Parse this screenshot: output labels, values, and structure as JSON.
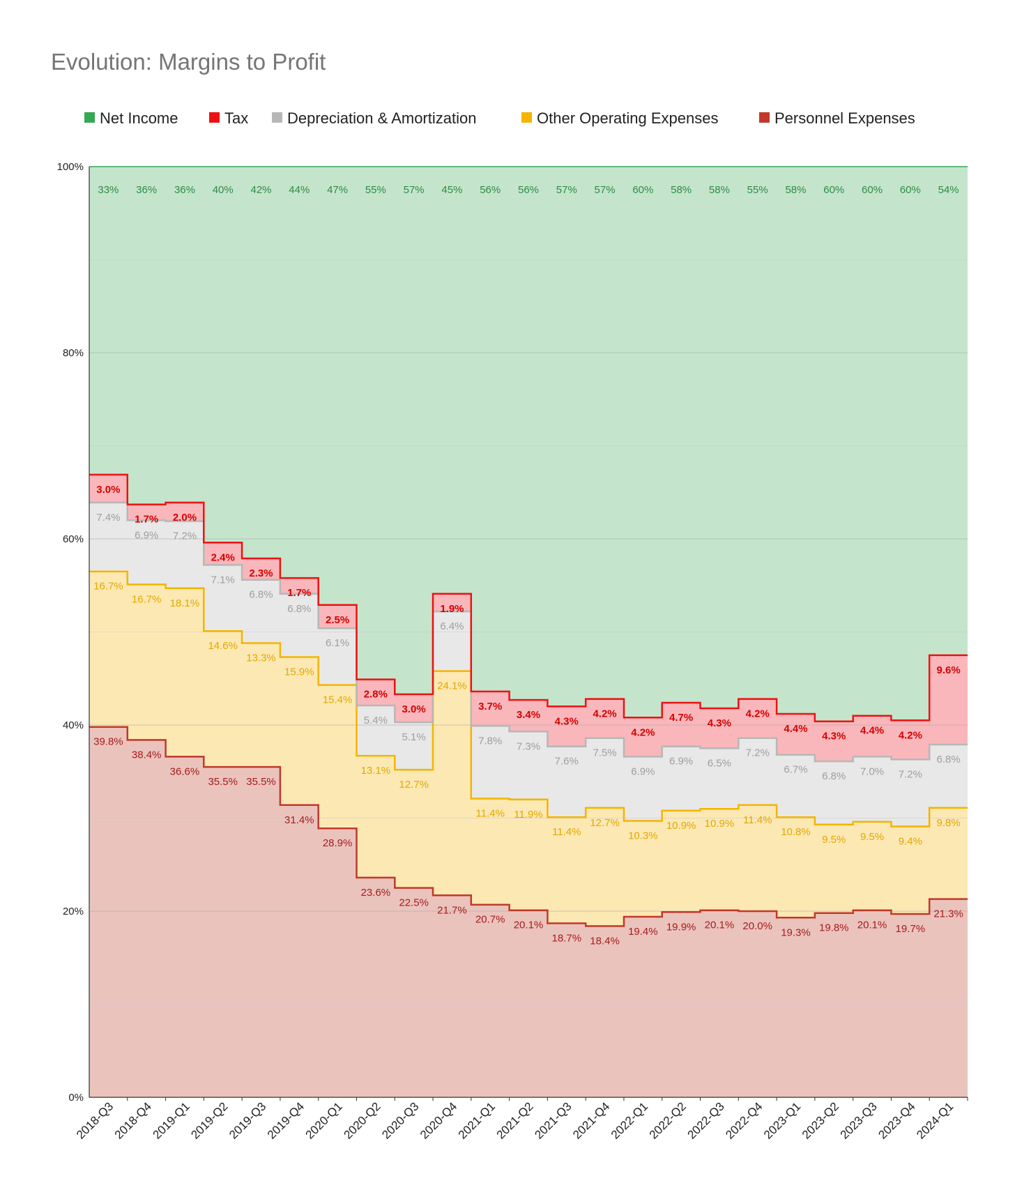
{
  "chart_data": {
    "type": "area",
    "step": true,
    "stacked": true,
    "title": "Evolution: Margins to Profit",
    "legend_position": "top",
    "ylim": [
      0,
      100
    ],
    "y_ticks": [
      "0%",
      "20%",
      "40%",
      "60%",
      "80%",
      "100%"
    ],
    "grid": true,
    "categories": [
      "2018-Q3",
      "2018-Q4",
      "2019-Q1",
      "2019-Q2",
      "2019-Q3",
      "2019-Q4",
      "2020-Q1",
      "2020-Q2",
      "2020-Q3",
      "2020-Q4",
      "2021-Q1",
      "2021-Q2",
      "2021-Q3",
      "2021-Q4",
      "2022-Q1",
      "2022-Q2",
      "2022-Q3",
      "2022-Q4",
      "2023-Q1",
      "2023-Q2",
      "2023-Q3",
      "2023-Q4",
      "2024-Q1"
    ],
    "series": [
      {
        "name": "Personnel Expenses",
        "color": "#c0392b",
        "fill": "#ebc3bd",
        "label_color": "#a61c1c",
        "values": [
          39.8,
          38.4,
          36.6,
          35.5,
          35.5,
          31.4,
          28.9,
          23.6,
          22.5,
          21.7,
          20.7,
          20.1,
          18.7,
          18.4,
          19.4,
          19.9,
          20.1,
          20.0,
          19.3,
          19.8,
          20.1,
          19.7,
          21.3
        ],
        "labels": [
          "39.8%",
          "38.4%",
          "36.6%",
          "35.5%",
          "35.5%",
          "31.4%",
          "28.9%",
          "23.6%",
          "22.5%",
          "21.7%",
          "20.7%",
          "20.1%",
          "18.7%",
          "18.4%",
          "19.4%",
          "19.9%",
          "20.1%",
          "20.0%",
          "19.3%",
          "19.8%",
          "20.1%",
          "19.7%",
          "21.3%"
        ]
      },
      {
        "name": "Other Operating Expenses",
        "color": "#f4b400",
        "fill": "#fce8b2",
        "label_color": "#e3a800",
        "values": [
          16.7,
          16.7,
          18.1,
          14.6,
          13.3,
          15.9,
          15.4,
          13.1,
          12.7,
          24.1,
          11.4,
          11.9,
          11.4,
          12.7,
          10.3,
          10.9,
          10.9,
          11.4,
          10.8,
          9.5,
          9.5,
          9.4,
          9.8
        ],
        "labels": [
          "16.7%",
          "16.7%",
          "18.1%",
          "14.6%",
          "13.3%",
          "15.9%",
          "15.4%",
          "13.1%",
          "12.7%",
          "24.1%",
          "11.4%",
          "11.9%",
          "11.4%",
          "12.7%",
          "10.3%",
          "10.9%",
          "10.9%",
          "11.4%",
          "10.8%",
          "9.5%",
          "9.5%",
          "9.4%",
          "9.8%"
        ]
      },
      {
        "name": "Depreciation & Amortization",
        "color": "#b7b7b7",
        "fill": "#e8e8e8",
        "label_color": "#9e9e9e",
        "values": [
          7.4,
          6.9,
          7.2,
          7.1,
          6.8,
          6.8,
          6.1,
          5.4,
          5.1,
          6.4,
          7.8,
          7.3,
          7.6,
          7.5,
          6.9,
          6.9,
          6.5,
          7.2,
          6.7,
          6.8,
          7.0,
          7.2,
          6.8
        ],
        "labels": [
          "7.4%",
          "6.9%",
          "7.2%",
          "7.1%",
          "6.8%",
          "6.8%",
          "6.1%",
          "5.4%",
          "5.1%",
          "6.4%",
          "7.8%",
          "7.3%",
          "7.6%",
          "7.5%",
          "6.9%",
          "6.9%",
          "6.5%",
          "7.2%",
          "6.7%",
          "6.8%",
          "7.0%",
          "7.2%",
          "6.8%"
        ]
      },
      {
        "name": "Tax",
        "color": "#ee1111",
        "fill": "#f9b7bb",
        "label_color": "#d50000",
        "values": [
          3.0,
          1.7,
          2.0,
          2.4,
          2.3,
          1.7,
          2.5,
          2.8,
          3.0,
          1.9,
          3.7,
          3.4,
          4.3,
          4.2,
          4.2,
          4.7,
          4.3,
          4.2,
          4.4,
          4.3,
          4.4,
          4.2,
          9.6
        ],
        "labels": [
          "3.0%",
          "1.7%",
          "2.0%",
          "2.4%",
          "2.3%",
          "1.7%",
          "2.5%",
          "2.8%",
          "3.0%",
          "1.9%",
          "3.7%",
          "3.4%",
          "4.3%",
          "4.2%",
          "4.2%",
          "4.7%",
          "4.3%",
          "4.2%",
          "4.4%",
          "4.3%",
          "4.4%",
          "4.2%",
          "9.6%"
        ]
      },
      {
        "name": "Net Income",
        "color": "#34a853",
        "fill": "#c4e5cc",
        "label_color": "#2e8b46",
        "values": [
          33,
          36,
          36,
          40,
          42,
          44,
          47,
          55,
          57,
          45,
          56,
          56,
          57,
          57,
          60,
          58,
          58,
          55,
          58,
          60,
          60,
          60,
          54
        ],
        "labels": [
          "33%",
          "36%",
          "36%",
          "40%",
          "42%",
          "44%",
          "47%",
          "55%",
          "57%",
          "45%",
          "56%",
          "56%",
          "57%",
          "57%",
          "60%",
          "58%",
          "58%",
          "55%",
          "58%",
          "60%",
          "60%",
          "60%",
          "54%"
        ]
      }
    ],
    "legend": [
      {
        "name": "Net Income",
        "color": "#34a853"
      },
      {
        "name": "Tax",
        "color": "#ee1111"
      },
      {
        "name": "Depreciation & Amortization",
        "color": "#b7b7b7"
      },
      {
        "name": "Other Operating Expenses",
        "color": "#f4b400"
      },
      {
        "name": "Personnel Expenses",
        "color": "#c0392b"
      }
    ]
  }
}
